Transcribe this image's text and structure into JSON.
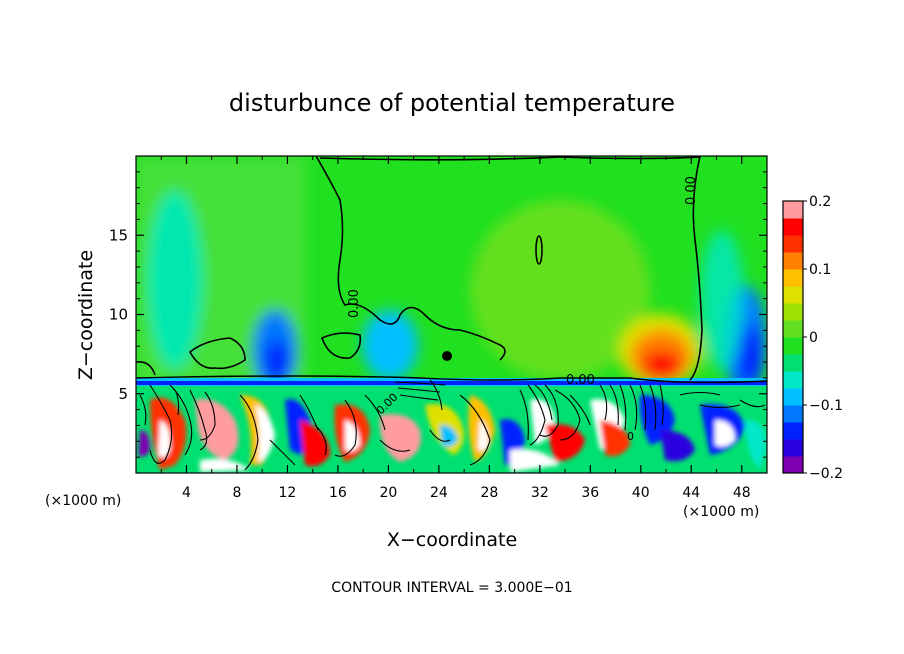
{
  "chart_data": {
    "type": "heatmap",
    "title": "disturbunce of potential temperature",
    "xlabel": "X−coordinate",
    "ylabel": "Z−coordinate",
    "x_unit_left": "(×1000 m)",
    "x_unit_right": "(×1000 m)",
    "footer": "CONTOUR INTERVAL = 3.000E−01",
    "xlim": [
      0,
      50
    ],
    "ylim": [
      0,
      20
    ],
    "x_ticks": [
      "4",
      "8",
      "12",
      "16",
      "20",
      "24",
      "28",
      "32",
      "36",
      "40",
      "44",
      "48"
    ],
    "y_ticks": [
      "5",
      "10",
      "15"
    ],
    "colorbar": {
      "min": -0.2,
      "max": 0.2,
      "tick_labels": [
        "0.2",
        "0.1",
        "0",
        "−0.1",
        "−0.2"
      ],
      "colors": [
        "#7f00b0",
        "#2a00e0",
        "#0022ff",
        "#0077ff",
        "#00c0ff",
        "#00e8c8",
        "#00e070",
        "#20e020",
        "#60e020",
        "#a0e000",
        "#e0e000",
        "#ffc000",
        "#ff8000",
        "#ff3000",
        "#ff0000",
        "#ff9ca0"
      ]
    },
    "contour_labels": [
      "0.00",
      "0.00",
      "0.00",
      "0.00"
    ],
    "annotations": [
      "0"
    ],
    "features": [
      {
        "x": 9,
        "z": 6.5,
        "value": -0.12,
        "sx": 2.2,
        "sz": 2.2,
        "desc": "negative anomaly"
      },
      {
        "x": 18,
        "z": 7.5,
        "value": -0.08,
        "sx": 2.5,
        "sz": 3
      },
      {
        "x": 47,
        "z": 8.5,
        "value": -0.15,
        "sx": 2.2,
        "sz": 3.5
      },
      {
        "x": 41.5,
        "z": 7.5,
        "value": 0.15,
        "sx": 2.5,
        "sz": 2.2
      },
      {
        "x": 35,
        "z": 13,
        "value": 0.05,
        "sx": 4,
        "sz": 5
      },
      {
        "x": 3,
        "z": 12,
        "value": -0.04,
        "sx": 3,
        "sz": 5
      }
    ]
  }
}
